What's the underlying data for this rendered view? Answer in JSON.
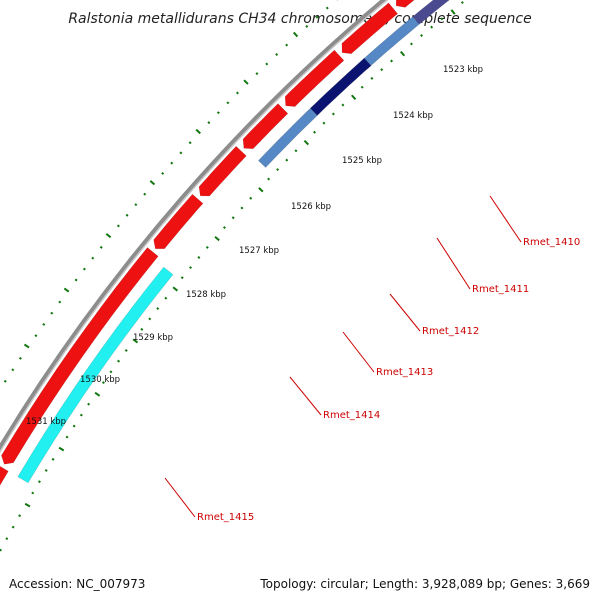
{
  "title": "Ralstonia metallidurans CH34 chromosome 1, complete sequence",
  "footer": {
    "accession": "Accession: NC_007973",
    "stats": "Topology: circular; Length: 3,928,089 bp; Genes: 3,669"
  },
  "kbp_labels": [
    "1523 kbp",
    "1524 kbp",
    "1525 kbp",
    "1526 kbp",
    "1527 kbp",
    "1528 kbp",
    "1529 kbp",
    "1530 kbp",
    "1531 kbp"
  ],
  "gene_labels": [
    "Rmet_1410",
    "Rmet_1411",
    "Rmet_1412",
    "Rmet_1413",
    "Rmet_1414",
    "Rmet_1415"
  ],
  "colors": {
    "backbone": "#8c8c8c",
    "cds_red": "#ee1111",
    "steel_blue": "#5588c4",
    "dark_navy": "#0a1470",
    "slate_purple": "#4a4a90",
    "cyan": "#22f0f0",
    "tick_green": "#117711",
    "label_red": "#cc0000"
  }
}
